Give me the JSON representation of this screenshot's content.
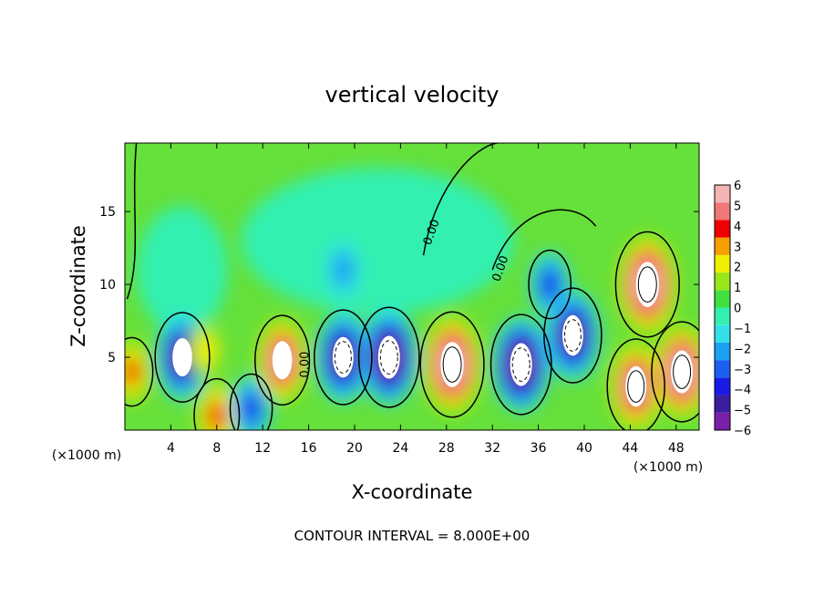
{
  "chart_data": {
    "type": "heatmap",
    "title": "vertical velocity",
    "xlabel": "X-coordinate",
    "ylabel": "Z-coordinate",
    "x_unit_label": "(×1000 m)",
    "x_ticks": [
      4,
      8,
      12,
      16,
      20,
      24,
      28,
      32,
      36,
      40,
      44,
      48
    ],
    "y_ticks": [
      5,
      10,
      15
    ],
    "xlim": [
      0,
      50
    ],
    "ylim": [
      0,
      19.7
    ],
    "colorbar": {
      "min": -6,
      "max": 6,
      "labels": [
        "6",
        "5",
        "4",
        "3",
        "2",
        "1",
        "0",
        "−1",
        "−2",
        "−3",
        "−4",
        "−5",
        "−6"
      ],
      "colors": [
        "#7a1fa8",
        "#3b1ea0",
        "#1a1ae6",
        "#1a5ff0",
        "#1aa0f0",
        "#33e0e8",
        "#33f0b0",
        "#40e040",
        "#99e61a",
        "#f0f000",
        "#f5a000",
        "#f00000",
        "#f07878",
        "#f5b4b4"
      ]
    },
    "zero_contour_label": "0.00",
    "footer": "CONTOUR INTERVAL = 8.000E+00",
    "cells": [
      {
        "x": 0.6,
        "z": 4.0,
        "w": 2.5
      },
      {
        "x": 5.0,
        "z": 5.0,
        "w": -4.5
      },
      {
        "x": 7.0,
        "z": 5.5,
        "w": 1.5
      },
      {
        "x": 8.0,
        "z": 1.0,
        "w": 3.0
      },
      {
        "x": 11.0,
        "z": 1.5,
        "w": -2.5
      },
      {
        "x": 13.7,
        "z": 4.8,
        "w": 4.5
      },
      {
        "x": 19.0,
        "z": 5.0,
        "w": -5.0
      },
      {
        "x": 23.0,
        "z": 5.0,
        "w": -5.5
      },
      {
        "x": 28.5,
        "z": 4.5,
        "w": 6.0
      },
      {
        "x": 34.5,
        "z": 4.5,
        "w": -5.5
      },
      {
        "x": 39.0,
        "z": 6.5,
        "w": -5.0
      },
      {
        "x": 45.5,
        "z": 10.0,
        "w": 6.0
      },
      {
        "x": 44.5,
        "z": 3.0,
        "w": 5.0
      },
      {
        "x": 48.5,
        "z": 4.0,
        "w": 5.5
      },
      {
        "x": 19.0,
        "z": 11.0,
        "w": -1.5
      },
      {
        "x": 37.0,
        "z": 10.0,
        "w": -2.5
      }
    ]
  }
}
